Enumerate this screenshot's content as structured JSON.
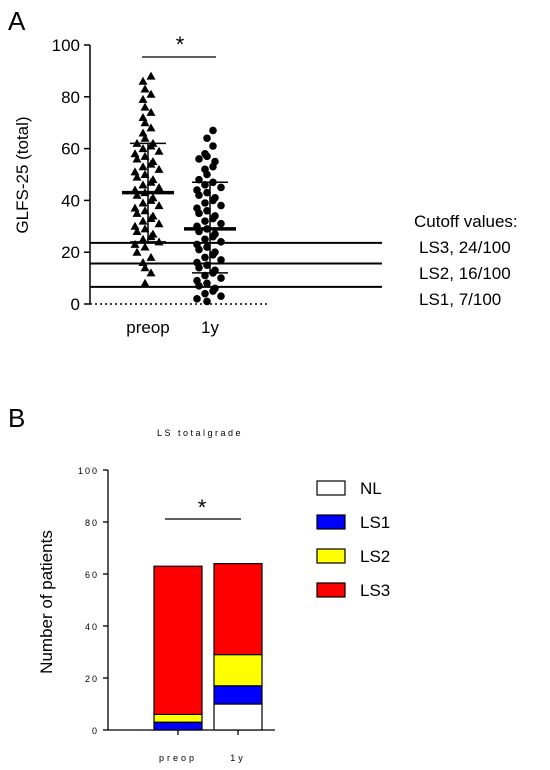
{
  "panel_a": {
    "panel_label": "A",
    "ylabel": "GLFS-25 (total)",
    "yticks": [
      "0",
      "20",
      "40",
      "60",
      "80",
      "100"
    ],
    "categories": [
      "preop",
      "1y"
    ],
    "significance": "*",
    "cutoff_title": "Cutoff values:",
    "cutoff_lines": [
      "LS3, 24/100",
      "LS2, 16/100",
      "LS1,  7/100"
    ]
  },
  "panel_b": {
    "panel_label": "B",
    "title": "LS totalgrade",
    "ylabel": "Number of patients",
    "yticks": [
      "0",
      "20",
      "40",
      "60",
      "80",
      "100"
    ],
    "categories": [
      "preop",
      "1y"
    ],
    "significance": "*",
    "legend": [
      "NL",
      "LS1",
      "LS2",
      "LS3"
    ]
  },
  "chart_data": [
    {
      "type": "scatter",
      "ylabel": "GLFS-25 (total)",
      "ylim": [
        0,
        100
      ],
      "categories": [
        "preop",
        "1y"
      ],
      "series": [
        {
          "marker": "triangle",
          "color": "#000000",
          "values": [
            88,
            86,
            83,
            81,
            79,
            76,
            74,
            72,
            70,
            68,
            66,
            64,
            62,
            62,
            61,
            60,
            59,
            58,
            57,
            56,
            55,
            54,
            53,
            52,
            51,
            50,
            49,
            48,
            47,
            46,
            45,
            44,
            43,
            42,
            41,
            40,
            39,
            38,
            37,
            36,
            35,
            34,
            33,
            32,
            31,
            30,
            29,
            28,
            27,
            26,
            25,
            24,
            23,
            22,
            20,
            18,
            16,
            14,
            12,
            8
          ],
          "mean": 43,
          "sd": [
            24,
            62
          ]
        },
        {
          "marker": "circle",
          "color": "#000000",
          "values": [
            67,
            64,
            61,
            58,
            57,
            56,
            55,
            53,
            52,
            50,
            48,
            47,
            46,
            45,
            44,
            43,
            42,
            41,
            40,
            39,
            38,
            37,
            36,
            35,
            34,
            33,
            32,
            31,
            30,
            29,
            28,
            27,
            26,
            25,
            24,
            23,
            22,
            21,
            20,
            19,
            18,
            17,
            16,
            15,
            14,
            13,
            12,
            11,
            10,
            9,
            8,
            7,
            6,
            5,
            4,
            3,
            2,
            1
          ],
          "mean": 29,
          "sd": [
            12,
            47
          ]
        }
      ],
      "reference_lines": [
        24,
        16,
        7
      ],
      "grid": false
    },
    {
      "type": "bar",
      "title": "LS totalgrade",
      "ylabel": "Number of patients",
      "ylim": [
        0,
        100
      ],
      "categories": [
        "preop",
        "1y"
      ],
      "stacked": true,
      "series": [
        {
          "name": "NL",
          "color": "#ffffff",
          "values": [
            0,
            10
          ]
        },
        {
          "name": "LS1",
          "color": "#0000ff",
          "values": [
            3,
            7
          ]
        },
        {
          "name": "LS2",
          "color": "#ffff00",
          "values": [
            3,
            12
          ]
        },
        {
          "name": "LS3",
          "color": "#ff0000",
          "values": [
            57,
            35
          ]
        }
      ],
      "legend": "right",
      "grid": false
    }
  ]
}
